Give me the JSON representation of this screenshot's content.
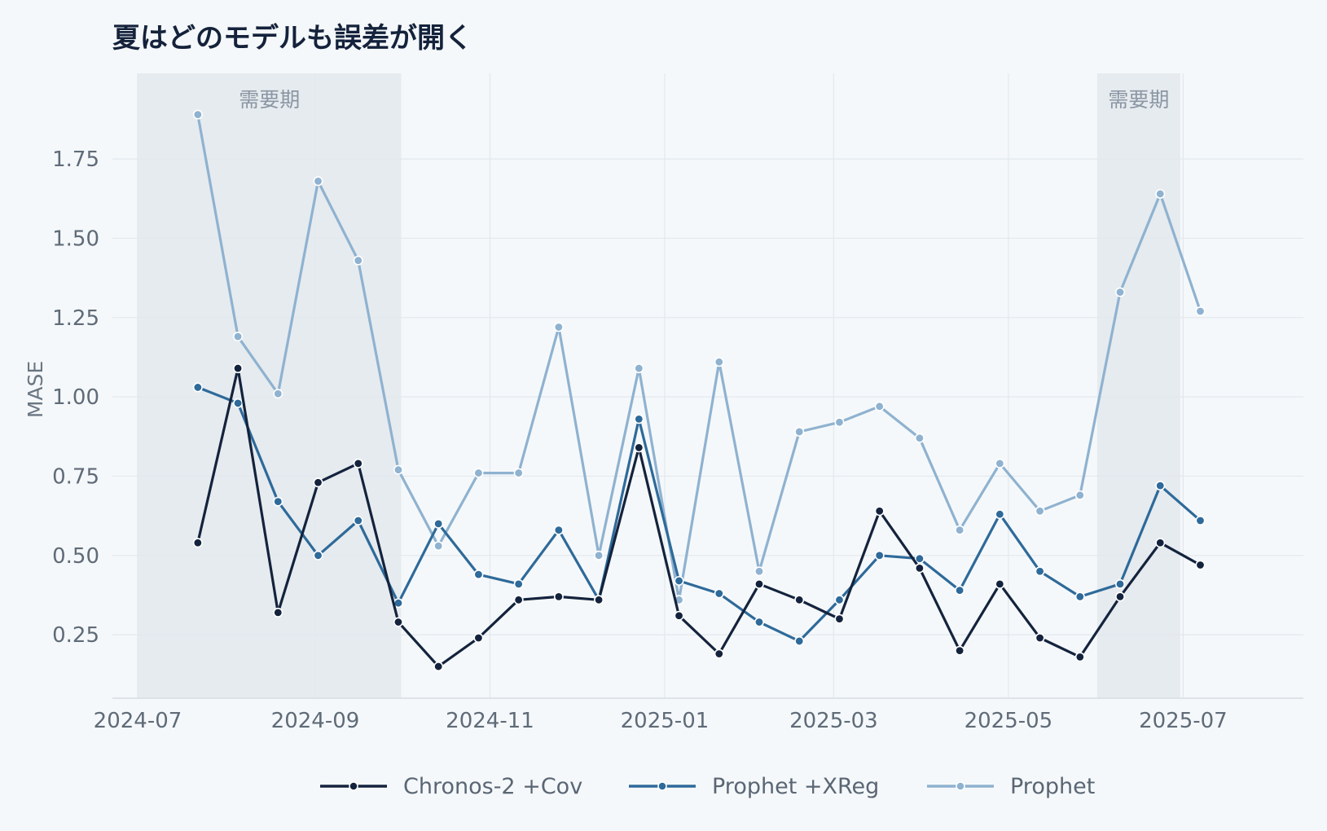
{
  "chart_data": {
    "type": "line",
    "title": "夏はどのモデルも誤差が開く",
    "xlabel": "",
    "ylabel": "MASE",
    "x_ticks": [
      "2024-07",
      "2024-09",
      "2024-11",
      "2025-01",
      "2025-03",
      "2025-05",
      "2025-07"
    ],
    "y_ticks": [
      "0.25",
      "0.50",
      "0.75",
      "1.00",
      "1.25",
      "1.50",
      "1.75"
    ],
    "ylim": [
      0.05,
      2.02
    ],
    "xlim": [
      "2024-07-01",
      "2025-07-25"
    ],
    "grid": true,
    "legend_position": "bottom-center",
    "shaded_regions": [
      {
        "label": "需要期",
        "start": "2024-07-01",
        "end": "2024-10-01"
      },
      {
        "label": "需要期",
        "start": "2025-06-01",
        "end": "2025-06-30"
      }
    ],
    "x": [
      "2024-07-22",
      "2024-08-05",
      "2024-08-19",
      "2024-09-02",
      "2024-09-16",
      "2024-09-30",
      "2024-10-14",
      "2024-10-28",
      "2024-11-11",
      "2024-11-25",
      "2024-12-09",
      "2024-12-23",
      "2025-01-06",
      "2025-01-20",
      "2025-02-03",
      "2025-02-17",
      "2025-03-03",
      "2025-03-17",
      "2025-03-31",
      "2025-04-14",
      "2025-04-28",
      "2025-05-12",
      "2025-05-26",
      "2025-06-09",
      "2025-06-23",
      "2025-07-07"
    ],
    "series": [
      {
        "name": "Chronos-2 +Cov",
        "color": "#14233d",
        "values": [
          0.54,
          1.09,
          0.32,
          0.73,
          0.79,
          0.29,
          0.15,
          0.24,
          0.36,
          0.37,
          0.36,
          0.84,
          0.31,
          0.19,
          0.41,
          0.36,
          0.3,
          0.64,
          0.46,
          0.2,
          0.41,
          0.24,
          0.18,
          0.37,
          0.54,
          0.47
        ]
      },
      {
        "name": "Prophet +XReg",
        "color": "#2e6a9a",
        "values": [
          1.03,
          0.98,
          0.67,
          0.5,
          0.61,
          0.35,
          0.6,
          0.44,
          0.41,
          0.58,
          0.36,
          0.93,
          0.42,
          0.38,
          0.29,
          0.23,
          0.36,
          0.5,
          0.49,
          0.39,
          0.63,
          0.45,
          0.37,
          0.41,
          0.72,
          0.61
        ]
      },
      {
        "name": "Prophet",
        "color": "#8fb2d0",
        "values": [
          1.89,
          1.19,
          1.01,
          1.68,
          1.43,
          0.77,
          0.53,
          0.76,
          0.76,
          1.22,
          0.5,
          1.09,
          0.36,
          1.11,
          0.45,
          0.89,
          0.92,
          0.97,
          0.87,
          0.58,
          0.79,
          0.64,
          0.69,
          1.33,
          1.64,
          1.27
        ]
      }
    ]
  }
}
